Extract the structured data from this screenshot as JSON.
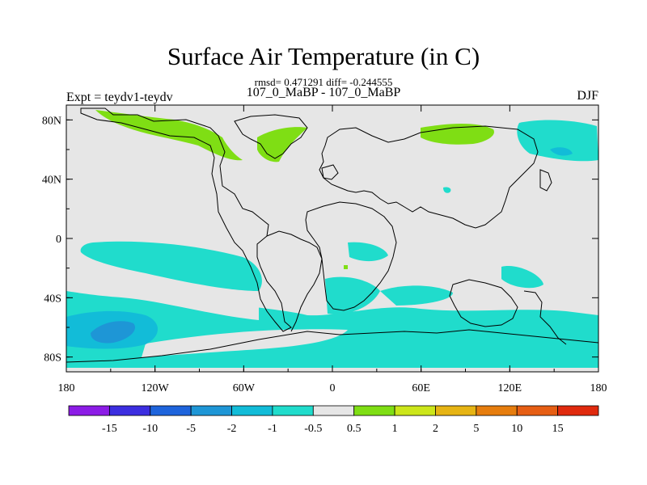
{
  "header": {
    "title": "Surface Air Temperature (in C)",
    "stats": "rmsd= 0.471291 diff= -0.244555",
    "subtitle": "107_0_MaBP - 107_0_MaBP",
    "experiment": "Expt = teydv1-teydv",
    "season": "DJF"
  },
  "chart_data": {
    "type": "heatmap",
    "title": "Surface Air Temperature (in C)",
    "xlabel": "",
    "ylabel": "",
    "x_ticks": [
      "180",
      "120W",
      "60W",
      "0",
      "60E",
      "120E",
      "180"
    ],
    "x_tick_values": [
      -180,
      -120,
      -60,
      0,
      60,
      120,
      180
    ],
    "y_ticks": [
      "80N",
      "40N",
      "0",
      "40S",
      "80S"
    ],
    "y_tick_values": [
      80,
      40,
      0,
      -40,
      -80
    ],
    "xlim": [
      -180,
      180
    ],
    "ylim": [
      -90,
      90
    ],
    "colorbar": {
      "labels": [
        "-15",
        "-10",
        "-5",
        "-2",
        "-1",
        "-0.5",
        "0.5",
        "1",
        "2",
        "5",
        "10",
        "15"
      ],
      "colors": [
        "#8c1ce6",
        "#3c2ee0",
        "#1e64dc",
        "#1e96d6",
        "#12bcd8",
        "#20dccc",
        "#e6e6e6",
        "#7fde14",
        "#cce61a",
        "#e6b414",
        "#e67d0e",
        "#e65e14",
        "#e02a0e"
      ]
    },
    "background_color": "#e6e6e6"
  }
}
